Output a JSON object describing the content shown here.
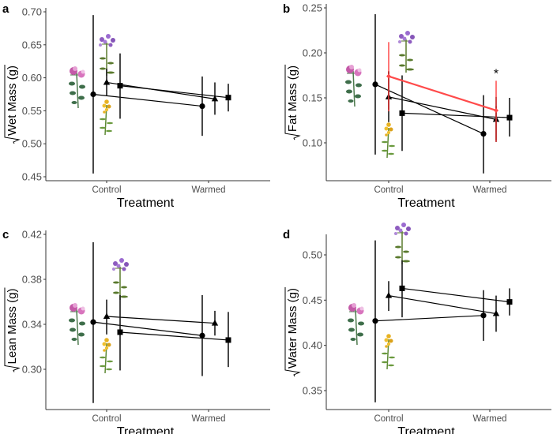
{
  "chart_data": [
    {
      "type": "line",
      "panel": "a",
      "title": "",
      "xlabel": "Treatment",
      "ylabel": "√Wet Mass (g)",
      "categories": [
        "Control",
        "Warmed"
      ],
      "ylim": [
        0.445,
        0.705
      ],
      "yticks": [
        0.45,
        0.5,
        0.55,
        0.6,
        0.65,
        0.7
      ],
      "ytick_labels": [
        "0.45",
        "0.50",
        "0.55",
        "0.60",
        "0.65",
        "0.70"
      ],
      "grid": false,
      "series": [
        {
          "name": "circle",
          "marker": "circle",
          "color": "#000000",
          "values": [
            0.575,
            0.557
          ],
          "lower": [
            0.455,
            0.512
          ],
          "upper": [
            0.695,
            0.602
          ]
        },
        {
          "name": "triangle",
          "marker": "triangle",
          "color": "#000000",
          "values": [
            0.593,
            0.568
          ],
          "lower": [
            0.573,
            0.544
          ],
          "upper": [
            0.614,
            0.593
          ]
        },
        {
          "name": "square",
          "marker": "square",
          "color": "#000000",
          "values": [
            0.588,
            0.57
          ],
          "lower": [
            0.538,
            0.549
          ],
          "upper": [
            0.637,
            0.591
          ]
        }
      ],
      "annotations": []
    },
    {
      "type": "line",
      "panel": "b",
      "title": "",
      "xlabel": "Treatment",
      "ylabel": "√Fat Mass (g)",
      "categories": [
        "Control",
        "Warmed"
      ],
      "ylim": [
        0.058,
        0.252
      ],
      "yticks": [
        0.1,
        0.15,
        0.2,
        0.25
      ],
      "ytick_labels": [
        "0.10",
        "0.15",
        "0.20",
        "0.25"
      ],
      "grid": false,
      "series": [
        {
          "name": "circle",
          "marker": "circle",
          "color": "#000000",
          "values": [
            0.165,
            0.11
          ],
          "lower": [
            0.087,
            0.066
          ],
          "upper": [
            0.243,
            0.153
          ]
        },
        {
          "name": "triangle",
          "marker": "triangle",
          "color": "#000000",
          "values": [
            0.151,
            0.126
          ],
          "lower": [
            0.123,
            0.101
          ],
          "upper": [
            0.179,
            0.151
          ]
        },
        {
          "name": "square",
          "marker": "square",
          "color": "#000000",
          "values": [
            0.133,
            0.128
          ],
          "lower": [
            0.091,
            0.107
          ],
          "upper": [
            0.175,
            0.15
          ]
        },
        {
          "name": "overall",
          "marker": "diamond",
          "color": "#ff4a4a",
          "values": [
            0.174,
            0.136
          ],
          "lower": [
            0.135,
            0.101
          ],
          "upper": [
            0.212,
            0.169
          ]
        }
      ],
      "annotations": [
        {
          "text": "*",
          "category": "Warmed",
          "series": "overall"
        }
      ]
    },
    {
      "type": "line",
      "panel": "c",
      "title": "",
      "xlabel": "Treatment",
      "ylabel": "√Lean Mass (g)",
      "categories": [
        "Control",
        "Warmed"
      ],
      "ylim": [
        0.262,
        0.422
      ],
      "yticks": [
        0.3,
        0.34,
        0.38,
        0.42
      ],
      "ytick_labels": [
        "0.30",
        "0.34",
        "0.38",
        "0.42"
      ],
      "grid": false,
      "series": [
        {
          "name": "circle",
          "marker": "circle",
          "color": "#000000",
          "values": [
            0.342,
            0.33
          ],
          "lower": [
            0.27,
            0.294
          ],
          "upper": [
            0.413,
            0.366
          ]
        },
        {
          "name": "triangle",
          "marker": "triangle",
          "color": "#000000",
          "values": [
            0.347,
            0.341
          ],
          "lower": [
            0.331,
            0.33
          ],
          "upper": [
            0.362,
            0.352
          ]
        },
        {
          "name": "square",
          "marker": "square",
          "color": "#000000",
          "values": [
            0.333,
            0.326
          ],
          "lower": [
            0.299,
            0.302
          ],
          "upper": [
            0.366,
            0.351
          ]
        }
      ],
      "annotations": []
    },
    {
      "type": "line",
      "panel": "d",
      "title": "",
      "xlabel": "Treatment",
      "ylabel": "√Water Mass (g)",
      "categories": [
        "Control",
        "Warmed"
      ],
      "ylim": [
        0.33,
        0.523
      ],
      "yticks": [
        0.35,
        0.4,
        0.45,
        0.5
      ],
      "ytick_labels": [
        "0.35",
        "0.40",
        "0.45",
        "0.50"
      ],
      "grid": false,
      "series": [
        {
          "name": "circle",
          "marker": "circle",
          "color": "#000000",
          "values": [
            0.427,
            0.433
          ],
          "lower": [
            0.337,
            0.405
          ],
          "upper": [
            0.516,
            0.461
          ]
        },
        {
          "name": "triangle",
          "marker": "triangle",
          "color": "#000000",
          "values": [
            0.455,
            0.435
          ],
          "lower": [
            0.438,
            0.415
          ],
          "upper": [
            0.471,
            0.455
          ]
        },
        {
          "name": "square",
          "marker": "square",
          "color": "#000000",
          "values": [
            0.463,
            0.448
          ],
          "lower": [
            0.431,
            0.433
          ],
          "upper": [
            0.494,
            0.463
          ]
        }
      ],
      "annotations": []
    }
  ],
  "panels": [
    {
      "letter": "a",
      "ylabel": "Wet Mass (g)",
      "xlabel": "Treatment"
    },
    {
      "letter": "b",
      "ylabel": "Fat Mass (g)",
      "xlabel": "Treatment"
    },
    {
      "letter": "c",
      "ylabel": "Lean Mass (g)",
      "xlabel": "Treatment"
    },
    {
      "letter": "d",
      "ylabel": "Water Mass (g)",
      "xlabel": "Treatment"
    }
  ],
  "flower_icons": [
    "pink-flower-icon",
    "purple-aster-icon",
    "yellow-goldenrod-icon"
  ],
  "colors": {
    "axis": "#333333",
    "points": "#000000",
    "errorbar": "#1a1a1a",
    "highlight": "#ff4a4a",
    "highlight_dark": "#b02a2a"
  }
}
